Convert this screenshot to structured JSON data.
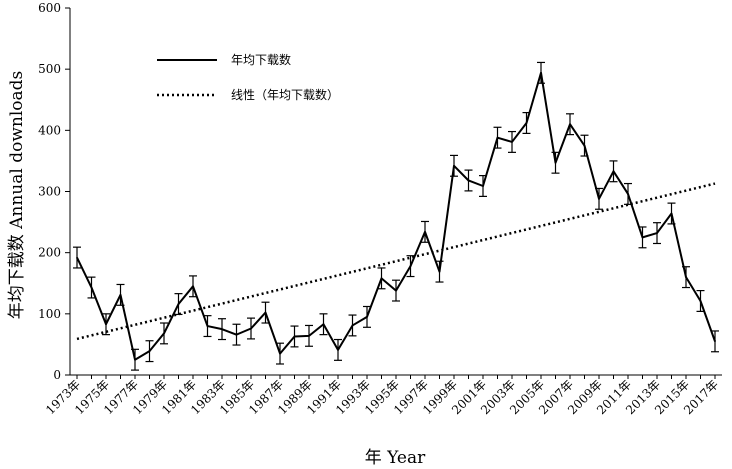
{
  "chart_data": {
    "type": "line",
    "xlabel": "年 Year",
    "ylabel": "年均下载数 Annual downloads",
    "ylim": [
      0,
      600
    ],
    "yticks": [
      0,
      100,
      200,
      300,
      400,
      500,
      600
    ],
    "grid": false,
    "legend_position": "top-left",
    "x": [
      1973,
      1974,
      1975,
      1976,
      1977,
      1978,
      1979,
      1980,
      1981,
      1982,
      1983,
      1984,
      1985,
      1986,
      1987,
      1988,
      1989,
      1990,
      1991,
      1992,
      1993,
      1994,
      1995,
      1996,
      1997,
      1998,
      1999,
      2000,
      2001,
      2002,
      2003,
      2004,
      2005,
      2006,
      2007,
      2008,
      2009,
      2010,
      2011,
      2012,
      2013,
      2014,
      2015,
      2016,
      2017
    ],
    "x_tick_labels": [
      "1973年",
      "1975年",
      "1977年",
      "1979年",
      "1981年",
      "1983年",
      "1985年",
      "1987年",
      "1989年",
      "1991年",
      "1993年",
      "1995年",
      "1997年",
      "1999年",
      "2001年",
      "2003年",
      "2005年",
      "2007年",
      "2009年",
      "2011年",
      "2013年",
      "2015年",
      "2017年"
    ],
    "series": [
      {
        "name": "年均下载数",
        "style": "solid",
        "color": "#000000",
        "values": [
          192,
          143,
          83,
          131,
          25,
          39,
          68,
          116,
          145,
          80,
          75,
          66,
          76,
          102,
          35,
          63,
          64,
          83,
          41,
          81,
          95,
          158,
          138,
          178,
          234,
          169,
          342,
          318,
          309,
          388,
          381,
          412,
          494,
          347,
          410,
          375,
          288,
          333,
          296,
          225,
          232,
          264,
          160,
          121,
          55
        ],
        "error": [
          17,
          17,
          17,
          17,
          17,
          17,
          17,
          17,
          17,
          17,
          17,
          17,
          17,
          17,
          17,
          17,
          17,
          17,
          17,
          17,
          17,
          17,
          17,
          17,
          17,
          17,
          17,
          17,
          17,
          17,
          17,
          17,
          17,
          17,
          17,
          17,
          17,
          17,
          17,
          17,
          17,
          17,
          17,
          17,
          17
        ]
      },
      {
        "name": "线性（年均下载数）",
        "style": "dotted",
        "color": "#000000",
        "type": "trendline",
        "values_at_ends": [
          59,
          313
        ]
      }
    ]
  }
}
